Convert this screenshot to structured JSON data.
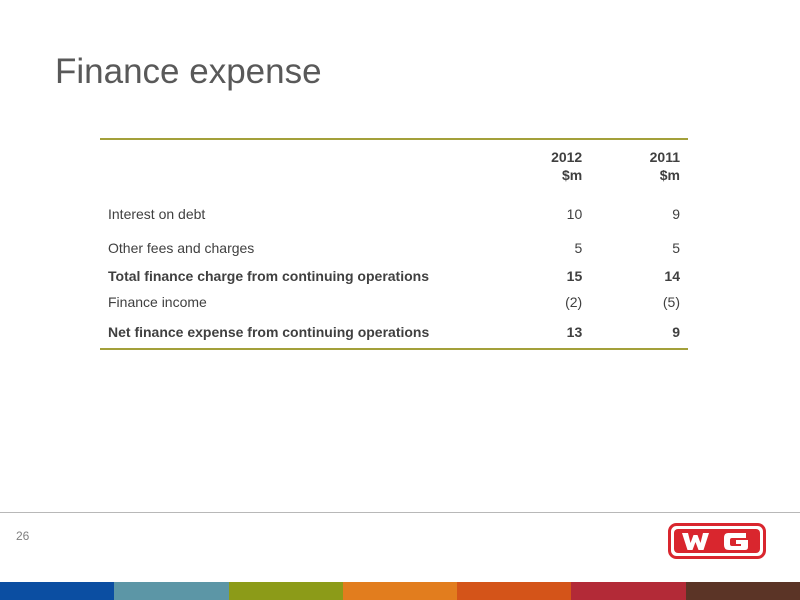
{
  "title": "Finance expense",
  "table": {
    "header": {
      "label": "",
      "col1": "2012\n$m",
      "col2": "2011\n$m"
    },
    "rows": [
      {
        "label": "Interest on debt",
        "y2012": "10",
        "y2011": "9"
      },
      {
        "label": "Other fees and charges",
        "y2012": "5",
        "y2011": "5"
      },
      {
        "label": "Total finance charge from continuing operations",
        "y2012": "15",
        "y2011": "14"
      },
      {
        "label": "Finance income",
        "y2012": "(2)",
        "y2011": "(5)"
      },
      {
        "label": "Net finance expense from continuing operations",
        "y2012": "13",
        "y2011": "9"
      }
    ]
  },
  "page_number": "26",
  "logo": {
    "text": "WG",
    "color": "#d9262e"
  },
  "colors": {
    "rule": "#a3a03a",
    "stripe": [
      "#0b4ea2",
      "#5c96a6",
      "#8c9b18",
      "#e27d1e",
      "#d45419",
      "#b32a37",
      "#5b3426"
    ]
  }
}
